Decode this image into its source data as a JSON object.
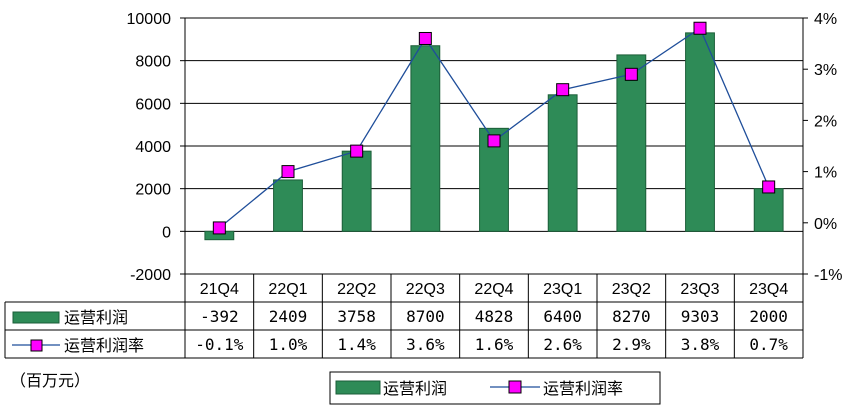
{
  "chart_data": {
    "type": "bar",
    "categories": [
      "21Q4",
      "22Q1",
      "22Q2",
      "22Q3",
      "22Q4",
      "23Q1",
      "23Q2",
      "23Q3",
      "23Q4"
    ],
    "series": [
      {
        "name": "运营利润",
        "type": "bar",
        "axis": "left",
        "values": [
          -392,
          2409,
          3758,
          8700,
          4828,
          6400,
          8270,
          9303,
          2000
        ],
        "labels": [
          "-392",
          "2409",
          "3758",
          "8700",
          "4828",
          "6400",
          "8270",
          "9303",
          "2000"
        ],
        "color": "#2e8b57"
      },
      {
        "name": "运营利润率",
        "type": "line",
        "axis": "right",
        "values": [
          -0.1,
          1.0,
          1.4,
          3.6,
          1.6,
          2.6,
          2.9,
          3.8,
          0.7
        ],
        "labels": [
          "-0.1%",
          "1.0%",
          "1.4%",
          "3.6%",
          "1.6%",
          "2.6%",
          "2.9%",
          "3.8%",
          "0.7%"
        ],
        "color": "#1f4e9a",
        "marker_color": "#ff00ff"
      }
    ],
    "y_left": {
      "ticks": [
        "10000",
        "8000",
        "6000",
        "4000",
        "2000",
        "0",
        "-2000"
      ],
      "ylim": [
        -2000,
        10000
      ]
    },
    "y_right": {
      "ticks": [
        "4%",
        "3%",
        "2%",
        "1%",
        "0%",
        "-1%"
      ],
      "ylim": [
        -1,
        4
      ]
    },
    "unit_note": "（百万元）",
    "grid": true,
    "legend": "bottom"
  }
}
